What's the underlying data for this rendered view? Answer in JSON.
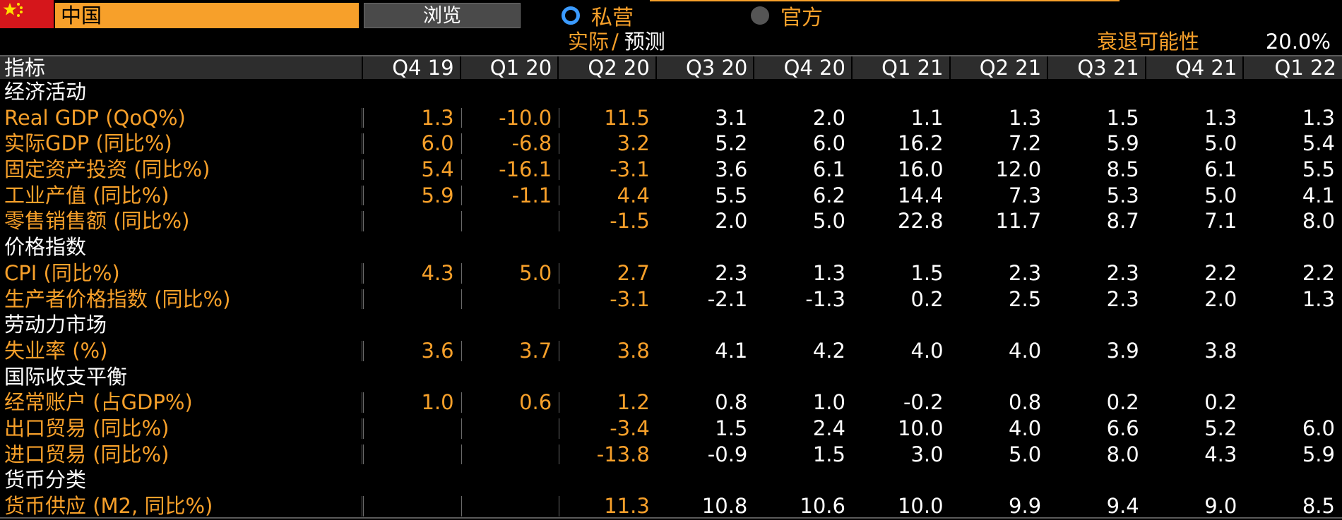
{
  "header": {
    "country": "中国",
    "browse_label": "浏览",
    "radio_private": "私营",
    "radio_official": "官方",
    "actual_label": "实际",
    "separator": "/",
    "forecast_label": "预测",
    "recession_label": "衰退可能性",
    "recession_value": "20.0%"
  },
  "table": {
    "indicator_header": "指标",
    "columns": [
      "Q4 19",
      "Q1 20",
      "Q2 20",
      "Q3 20",
      "Q4 20",
      "Q1 21",
      "Q2 21",
      "Q3 21",
      "Q4 21",
      "Q1 22"
    ],
    "actual_through_index": 2,
    "rows": [
      {
        "type": "section",
        "label": "经济活动"
      },
      {
        "type": "data",
        "label": "Real GDP (QoQ%)",
        "values": [
          "1.3",
          "-10.0",
          "11.5",
          "3.1",
          "2.0",
          "1.1",
          "1.3",
          "1.5",
          "1.3",
          "1.3"
        ]
      },
      {
        "type": "data",
        "label": "实际GDP (同比%)",
        "values": [
          "6.0",
          "-6.8",
          "3.2",
          "5.2",
          "6.0",
          "16.2",
          "7.2",
          "5.9",
          "5.0",
          "5.4"
        ]
      },
      {
        "type": "data",
        "label": "固定资产投资 (同比%)",
        "values": [
          "5.4",
          "-16.1",
          "-3.1",
          "3.6",
          "6.1",
          "16.0",
          "12.0",
          "8.5",
          "6.1",
          "5.5"
        ]
      },
      {
        "type": "data",
        "label": "工业产值 (同比%)",
        "values": [
          "5.9",
          "-1.1",
          "4.4",
          "5.5",
          "6.2",
          "14.4",
          "7.3",
          "5.3",
          "5.0",
          "4.1"
        ]
      },
      {
        "type": "data",
        "label": "零售销售额 (同比%)",
        "values": [
          "",
          "",
          "-1.5",
          "2.0",
          "5.0",
          "22.8",
          "11.7",
          "8.7",
          "7.1",
          "8.0"
        ]
      },
      {
        "type": "section",
        "label": "价格指数"
      },
      {
        "type": "data",
        "label": "CPI (同比%)",
        "values": [
          "4.3",
          "5.0",
          "2.7",
          "2.3",
          "1.3",
          "1.5",
          "2.3",
          "2.3",
          "2.2",
          "2.2"
        ]
      },
      {
        "type": "data",
        "label": "生产者价格指数 (同比%)",
        "values": [
          "",
          "",
          "-3.1",
          "-2.1",
          "-1.3",
          "0.2",
          "2.5",
          "2.3",
          "2.0",
          "1.3"
        ]
      },
      {
        "type": "section",
        "label": "劳动力市场"
      },
      {
        "type": "data",
        "label": "失业率 (%)",
        "values": [
          "3.6",
          "3.7",
          "3.8",
          "4.1",
          "4.2",
          "4.0",
          "4.0",
          "3.9",
          "3.8",
          ""
        ]
      },
      {
        "type": "section",
        "label": "国际收支平衡"
      },
      {
        "type": "data",
        "label": "经常账户 (占GDP%)",
        "values": [
          "1.0",
          "0.6",
          "1.2",
          "0.8",
          "1.0",
          "-0.2",
          "0.8",
          "0.2",
          "0.2",
          ""
        ]
      },
      {
        "type": "data",
        "label": "出口贸易 (同比%)",
        "values": [
          "",
          "",
          "-3.4",
          "1.5",
          "2.4",
          "10.0",
          "4.0",
          "6.6",
          "5.2",
          "6.0"
        ]
      },
      {
        "type": "data",
        "label": "进口贸易 (同比%)",
        "values": [
          "",
          "",
          "-13.8",
          "-0.9",
          "1.5",
          "3.0",
          "5.0",
          "8.0",
          "4.3",
          "5.9"
        ]
      },
      {
        "type": "section",
        "label": "货币分类"
      },
      {
        "type": "data",
        "label": "货币供应 (M2, 同比%)",
        "values": [
          "",
          "",
          "11.3",
          "10.8",
          "10.6",
          "10.0",
          "9.9",
          "9.4",
          "9.0",
          "8.5"
        ]
      }
    ]
  },
  "colors": {
    "accent_orange": "#f7a02a",
    "background": "#000000",
    "radio_selected": "#3b9bff",
    "flag_red": "#d5161b"
  },
  "icons": {
    "flag": "china-flag-icon",
    "radio_on": "radio-selected-icon",
    "radio_off": "radio-unselected-icon"
  }
}
